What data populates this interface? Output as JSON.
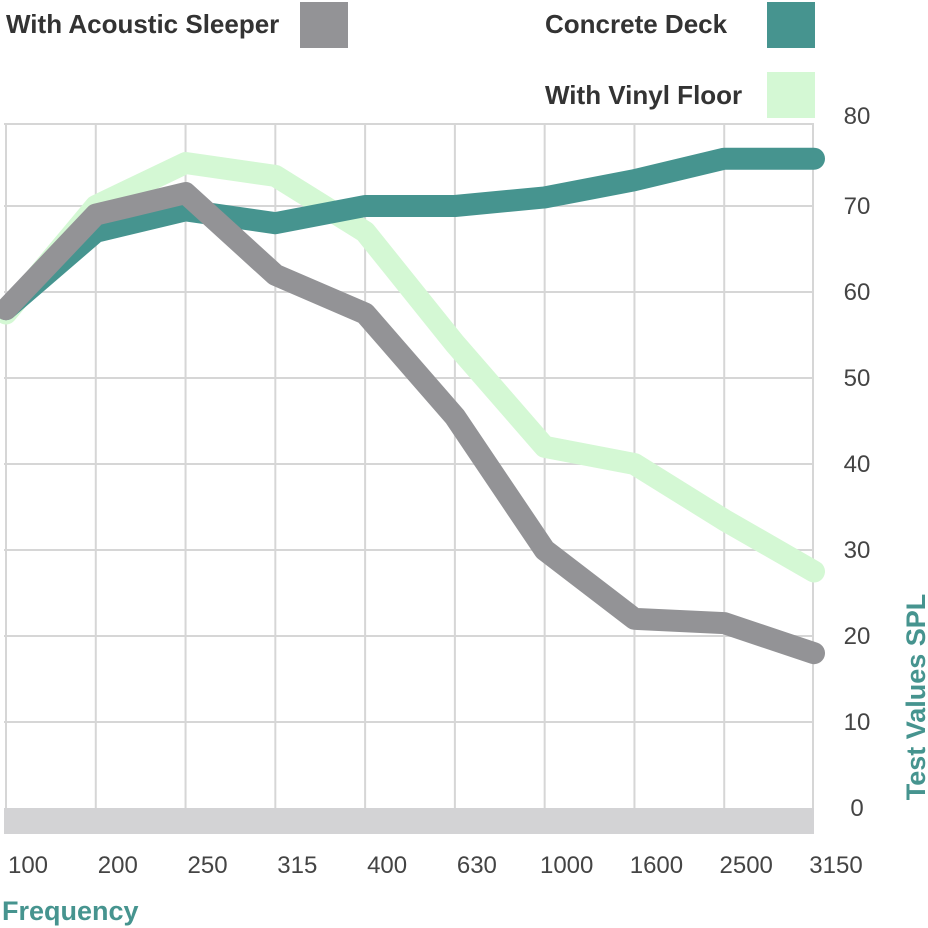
{
  "colors": {
    "concrete": "#46948f",
    "vinyl": "#d4f8d4",
    "sleeper": "#939396",
    "grid": "#d6d6d6",
    "axis_title": "#46948f"
  },
  "chart_data": {
    "type": "line",
    "xlabel": "Frequency",
    "ylabel": "Test Values SPL",
    "categories": [
      "100",
      "200",
      "250",
      "315",
      "400",
      "630",
      "1000",
      "1600",
      "2500",
      "3150"
    ],
    "yticks": [
      "0",
      "10",
      "20",
      "30",
      "40",
      "50",
      "60",
      "70",
      "80"
    ],
    "ylim": [
      0,
      80
    ],
    "grid": true,
    "legend_position": "top",
    "series": [
      {
        "name": "With Vinyl Floor",
        "key": "vinyl",
        "values": [
          57.5,
          70,
          75,
          73.5,
          67,
          54,
          42,
          40,
          33.5,
          27.5
        ]
      },
      {
        "name": "Concrete Deck",
        "key": "concrete",
        "values": [
          58,
          67,
          69.5,
          68,
          70,
          70,
          71,
          73,
          75.5,
          75.5
        ]
      },
      {
        "name": "With Acoustic Sleeper",
        "key": "sleeper",
        "values": [
          58,
          69,
          71.5,
          62,
          57.5,
          45.5,
          30,
          22,
          21.5,
          18
        ]
      }
    ]
  }
}
